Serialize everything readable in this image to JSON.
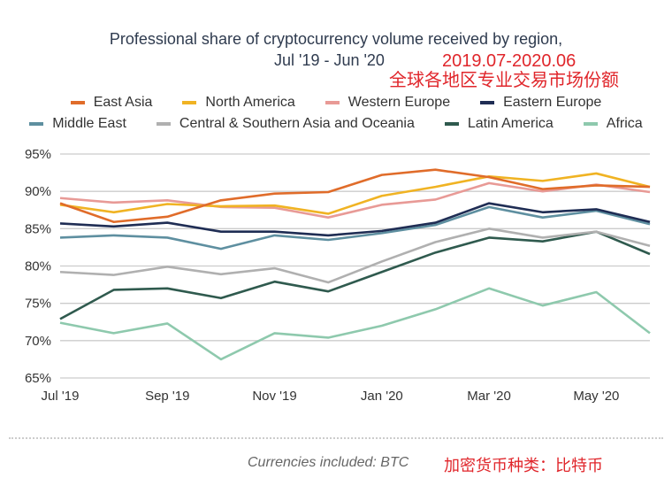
{
  "chart_data": {
    "type": "line",
    "title": "Professional share of cryptocurrency volume received by region,",
    "subtitle": "Jul '19 - Jun '20",
    "annotation_cn_1": "2019.07-2020.06",
    "annotation_cn_2": "全球各地区专业交易市场份额",
    "xlabel": "",
    "ylabel": "",
    "x": [
      "Jul '19",
      "Aug '19",
      "Sep '19",
      "Oct '19",
      "Nov '19",
      "Dec '19",
      "Jan '20",
      "Feb '20",
      "Mar '20",
      "Apr '20",
      "May '20",
      "Jun '20"
    ],
    "x_tick_labels": [
      "Jul '19",
      "Sep '19",
      "Nov '19",
      "Jan '20",
      "Mar '20",
      "May '20"
    ],
    "y_tick_labels": [
      "95%",
      "90%",
      "85%",
      "80%",
      "75%",
      "70%",
      "65%"
    ],
    "ylim": [
      65,
      95
    ],
    "grid": true,
    "legend_position": "top",
    "series": [
      {
        "name": "East Asia",
        "color": "#e06c2a",
        "values": [
          88.4,
          85.9,
          86.6,
          88.8,
          89.7,
          89.9,
          92.2,
          92.9,
          91.9,
          90.3,
          90.8,
          90.6
        ]
      },
      {
        "name": "North America",
        "color": "#f0b323",
        "values": [
          88.2,
          87.2,
          88.3,
          88.0,
          88.1,
          87.0,
          89.4,
          90.6,
          92.0,
          91.4,
          92.4,
          90.6
        ]
      },
      {
        "name": "Western Europe",
        "color": "#e89a96",
        "values": [
          89.1,
          88.5,
          88.8,
          87.9,
          87.8,
          86.5,
          88.2,
          88.9,
          91.1,
          90.0,
          90.9,
          89.9
        ]
      },
      {
        "name": "Eastern Europe",
        "color": "#1f2d54",
        "values": [
          85.7,
          85.3,
          85.8,
          84.6,
          84.6,
          84.1,
          84.7,
          85.8,
          88.4,
          87.2,
          87.6,
          85.9
        ]
      },
      {
        "name": "Middle East",
        "color": "#5e8fa0",
        "values": [
          83.8,
          84.1,
          83.8,
          82.3,
          84.1,
          83.5,
          84.4,
          85.5,
          87.9,
          86.5,
          87.4,
          85.6
        ]
      },
      {
        "name": "Central & Southern Asia and Oceania",
        "color": "#b0b0b0",
        "values": [
          79.2,
          78.8,
          79.9,
          78.9,
          79.7,
          77.8,
          80.6,
          83.2,
          85.0,
          83.8,
          84.6,
          82.7
        ]
      },
      {
        "name": "Latin America",
        "color": "#2f5a4e",
        "values": [
          72.9,
          76.8,
          77.0,
          75.7,
          77.9,
          76.6,
          79.2,
          81.8,
          83.8,
          83.3,
          84.6,
          81.6
        ]
      },
      {
        "name": "Africa",
        "color": "#8ec9ad",
        "values": [
          72.4,
          71.0,
          72.3,
          67.5,
          71.0,
          70.4,
          72.0,
          74.2,
          77.0,
          74.7,
          76.5,
          71.0
        ]
      }
    ]
  },
  "footer": {
    "text": "Currencies included: BTC",
    "text_cn": "加密货币种类：比特币"
  }
}
